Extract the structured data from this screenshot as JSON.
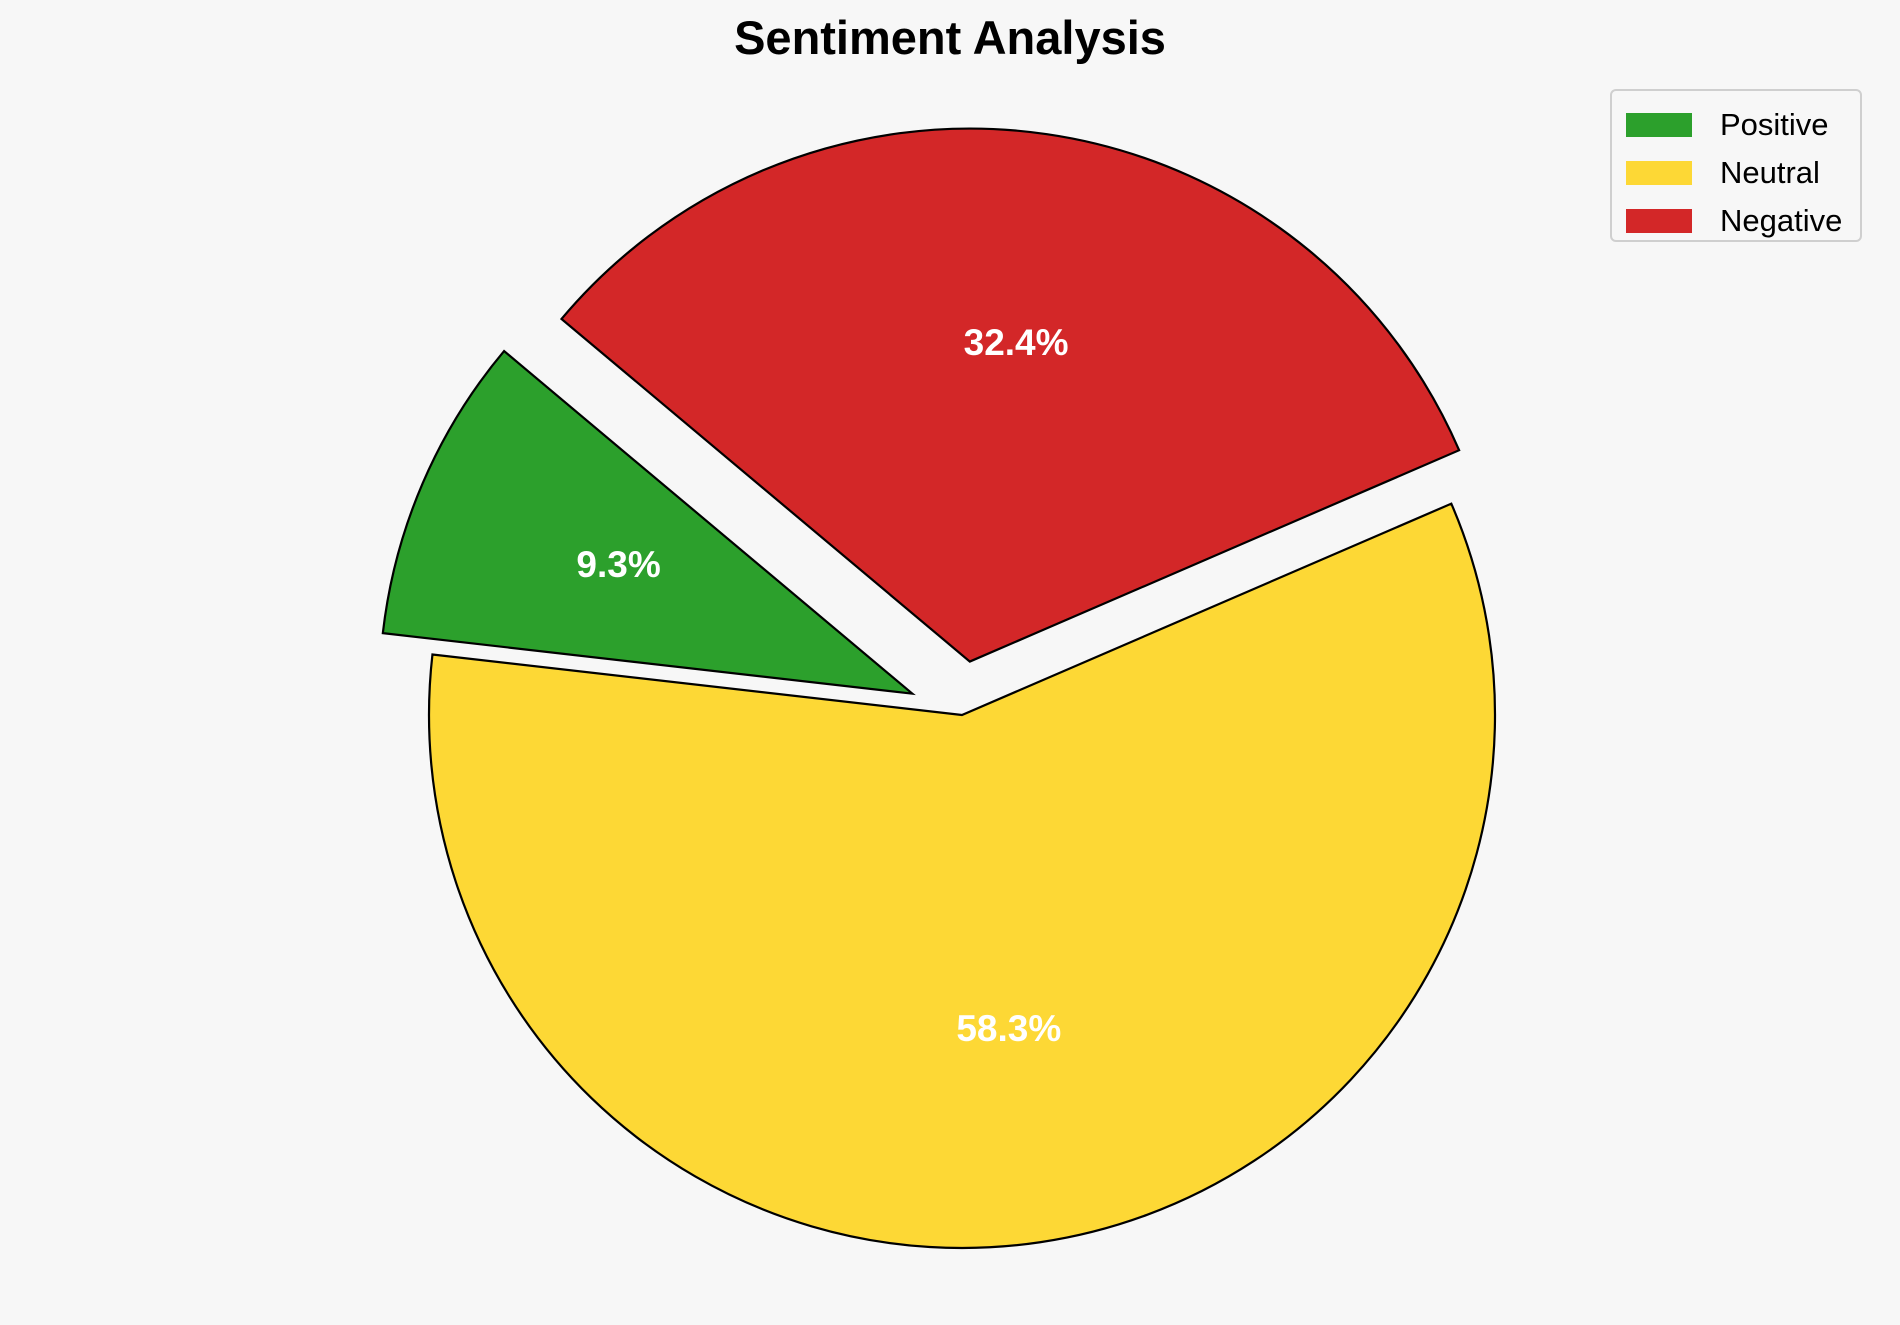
{
  "chart_data": {
    "type": "pie",
    "title": "Sentiment Analysis",
    "slices": [
      {
        "label": "Positive",
        "value": 9.3,
        "value_label": "9.3%",
        "color": "#2ca02c",
        "exploded": true
      },
      {
        "label": "Neutral",
        "value": 58.3,
        "value_label": "58.3%",
        "color": "#fdd835",
        "exploded": false
      },
      {
        "label": "Negative",
        "value": 32.4,
        "value_label": "32.4%",
        "color": "#d32728",
        "exploded": true
      }
    ],
    "start_angle_deg": 140,
    "direction": "counterclockwise",
    "slice_edge_color": "#000000",
    "value_label_color": "#ffffff",
    "legend": {
      "placement": "upper right",
      "items": [
        {
          "label": "Positive",
          "color": "#2ca02c"
        },
        {
          "label": "Neutral",
          "color": "#fdd835"
        },
        {
          "label": "Negative",
          "color": "#d32728"
        }
      ]
    }
  }
}
